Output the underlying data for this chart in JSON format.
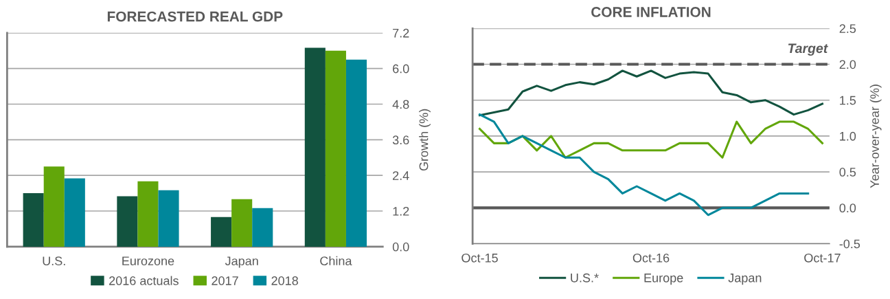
{
  "chart_data": [
    {
      "type": "bar",
      "title": "FORECASTED REAL GDP",
      "ylabel": "Growth (%)",
      "categories": [
        "U.S.",
        "Eurozone",
        "Japan",
        "China"
      ],
      "series": [
        {
          "name": "2016 actuals",
          "color": "#12533f",
          "values": [
            1.8,
            1.7,
            1.0,
            6.7
          ]
        },
        {
          "name": "2017",
          "color": "#62a60a",
          "values": [
            2.7,
            2.2,
            1.6,
            6.6
          ]
        },
        {
          "name": "2018",
          "color": "#00879b",
          "values": [
            2.3,
            1.9,
            1.3,
            6.3
          ]
        }
      ],
      "ylim": [
        0,
        7.2
      ],
      "yticks": [
        {
          "value": 0,
          "label": "0.0"
        },
        {
          "value": 1.2,
          "label": "1.2"
        },
        {
          "value": 2.4,
          "label": "2.4"
        },
        {
          "value": 3.6,
          "label": "3.6"
        },
        {
          "value": 4.8,
          "label": "4.8"
        },
        {
          "value": 6,
          "label": "6.0"
        },
        {
          "value": 7.2,
          "label": "7.2"
        }
      ],
      "grid": "y",
      "legend": "bottom"
    },
    {
      "type": "line",
      "title": "CORE INFLATION",
      "ylabel": "Year-over-year (%)",
      "categories": [
        "Oct-15",
        null,
        null,
        null,
        null,
        null,
        null,
        null,
        null,
        null,
        null,
        null,
        "Oct-16",
        null,
        null,
        null,
        null,
        null,
        null,
        null,
        null,
        null,
        null,
        null,
        "Oct-17"
      ],
      "series": [
        {
          "name": "U.S.*",
          "color": "#12533f",
          "values": [
            1.29,
            1.33,
            1.37,
            1.62,
            1.7,
            1.63,
            1.71,
            1.75,
            1.72,
            1.79,
            1.91,
            1.83,
            1.91,
            1.81,
            1.87,
            1.89,
            1.87,
            1.61,
            1.57,
            1.47,
            1.5,
            1.41,
            1.3,
            1.36,
            1.45
          ]
        },
        {
          "name": "Europe",
          "color": "#62a60a",
          "values": [
            1.1,
            0.9,
            0.9,
            1.0,
            0.8,
            1.0,
            0.7,
            0.8,
            0.9,
            0.9,
            0.8,
            0.8,
            0.8,
            0.8,
            0.9,
            0.9,
            0.9,
            0.7,
            1.2,
            0.9,
            1.1,
            1.2,
            1.2,
            1.1,
            0.9
          ]
        },
        {
          "name": "Japan",
          "color": "#00879b",
          "values": [
            1.3,
            1.2,
            0.9,
            1.0,
            0.9,
            0.8,
            0.7,
            0.7,
            0.5,
            0.4,
            0.2,
            0.3,
            0.2,
            0.1,
            0.2,
            0.1,
            -0.1,
            0.0,
            0.0,
            0.0,
            0.1,
            0.2,
            0.2,
            0.2,
            null
          ]
        }
      ],
      "ylim": [
        -0.5,
        2.5
      ],
      "yticks": [
        {
          "value": -0.5,
          "label": "-0.5"
        },
        {
          "value": 0,
          "label": "0.0"
        },
        {
          "value": 0.5,
          "label": "0.5"
        },
        {
          "value": 1,
          "label": "1.0"
        },
        {
          "value": 1.5,
          "label": "1.5"
        },
        {
          "value": 2,
          "label": "2.0"
        },
        {
          "value": 2.5,
          "label": "2.5"
        }
      ],
      "ref_lines": [
        {
          "axis": "y",
          "value": 2.0,
          "label": "Target",
          "color": "#595959",
          "line_style": "dashed"
        },
        {
          "axis": "y",
          "value": 0,
          "label": null,
          "color": "#595959",
          "line_style": "solid"
        }
      ],
      "grid": "y",
      "legend": "bottom",
      "marker": "none",
      "line_style": "solid"
    }
  ]
}
